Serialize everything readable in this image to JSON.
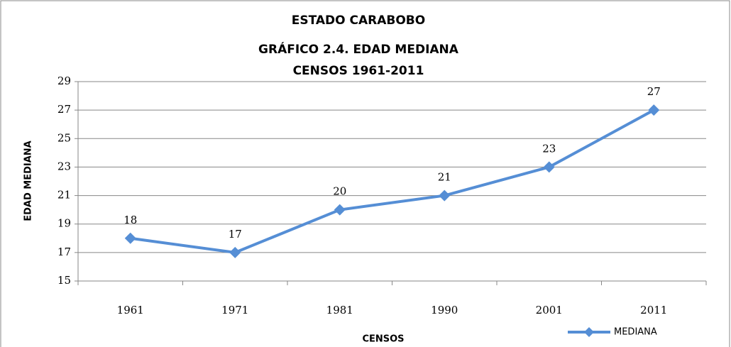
{
  "chart_data": {
    "type": "line",
    "title": [
      "ESTADO CARABOBO",
      "GRÁFICO 2.4. EDAD MEDIANA",
      "CENSOS 1961-2011"
    ],
    "x_label": "CENSOS",
    "y_label": "EDAD MEDIANA",
    "categories": [
      "1961",
      "1971",
      "1981",
      "1990",
      "2001",
      "2011"
    ],
    "series": [
      {
        "name": "MEDIANA",
        "color": "#558ed5",
        "values": [
          18,
          17,
          20,
          21,
          23,
          27
        ]
      }
    ],
    "ylim": [
      15,
      29
    ],
    "yticks": [
      15,
      17,
      19,
      21,
      23,
      25,
      27,
      29
    ],
    "grid": true,
    "data_labels": true,
    "legend": "bottom-right"
  }
}
